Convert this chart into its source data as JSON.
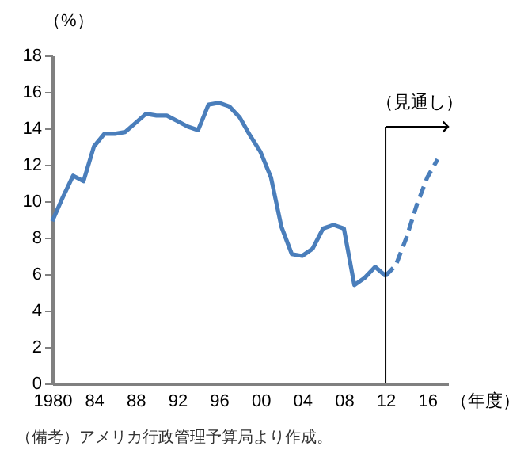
{
  "chart_data": {
    "type": "line",
    "ylabel": "（%）",
    "xlabel": "（年度）",
    "xlim": [
      1980,
      2018
    ],
    "ylim": [
      0,
      18
    ],
    "xticks": [
      1980,
      {
        "value": 1984,
        "label": "84"
      },
      {
        "value": 1988,
        "label": "88"
      },
      {
        "value": 1992,
        "label": "92"
      },
      {
        "value": 1996,
        "label": "96"
      },
      {
        "value": 2000,
        "label": "00"
      },
      {
        "value": 2004,
        "label": "04"
      },
      {
        "value": 2008,
        "label": "08"
      },
      {
        "value": 2012,
        "label": "12"
      },
      {
        "value": 2016,
        "label": "16"
      }
    ],
    "yticks": [
      0,
      2,
      4,
      6,
      8,
      10,
      12,
      14,
      16,
      18
    ],
    "series": [
      {
        "color": "#4a7ebb",
        "line_style": "solid",
        "x": [
          1980,
          1981,
          1982,
          1983,
          1984,
          1985,
          1986,
          1987,
          1988,
          1989,
          1990,
          1991,
          1992,
          1993,
          1994,
          1995,
          1996,
          1997,
          1998,
          1999,
          2000,
          2001,
          2002,
          2003,
          2004,
          2005,
          2006,
          2007,
          2008,
          2009,
          2010,
          2011,
          2012
        ],
        "values": [
          8.9,
          10.2,
          11.4,
          11.1,
          13.0,
          13.7,
          13.7,
          13.8,
          14.3,
          14.8,
          14.7,
          14.7,
          14.4,
          14.1,
          13.9,
          15.3,
          15.4,
          15.2,
          14.6,
          13.6,
          12.7,
          11.3,
          8.6,
          7.1,
          7.0,
          7.4,
          8.5,
          8.7,
          8.5,
          5.4,
          5.8,
          6.4,
          5.9
        ]
      },
      {
        "color": "#4a7ebb",
        "line_style": "dashed",
        "x": [
          2012,
          2013,
          2014,
          2015,
          2016,
          2017
        ],
        "values": [
          5.9,
          6.5,
          8.0,
          9.8,
          11.3,
          12.3
        ]
      }
    ],
    "ref_lines": [
      {
        "axis": "x",
        "value": 2012,
        "label": "（見通し）"
      }
    ],
    "grid": false,
    "annotations": [
      "（備考）アメリカ行政管理予算局より作成。"
    ]
  }
}
